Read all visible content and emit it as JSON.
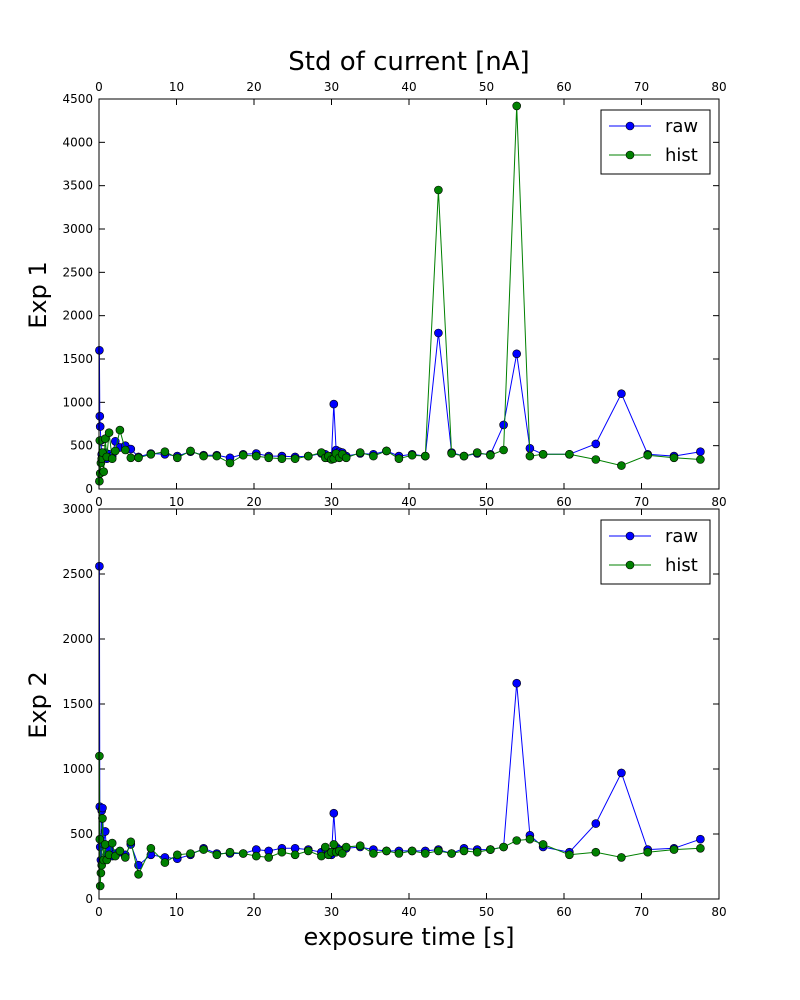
{
  "chart_data": [
    {
      "type": "line",
      "title": "Std of current [nA]",
      "xlabel": "",
      "ylabel": "Exp 1",
      "xlim": [
        0,
        80
      ],
      "ylim": [
        0,
        4500
      ],
      "xticks": [
        "0",
        "10",
        "20",
        "30",
        "40",
        "50",
        "60",
        "70",
        "80"
      ],
      "yticks": [
        "0",
        "500",
        "1000",
        "1500",
        "2000",
        "2500",
        "3000",
        "3500",
        "4000",
        "4500"
      ],
      "legend_position": "top-right",
      "series": [
        {
          "name": "raw",
          "color": "#0000ff",
          "x": [
            0.05,
            0.1,
            0.15,
            0.25,
            0.35,
            0.45,
            0.6,
            0.8,
            1.0,
            1.3,
            1.7,
            2.1,
            2.7,
            3.4,
            4.1,
            5.1,
            6.7,
            8.5,
            10.1,
            11.8,
            13.5,
            15.2,
            16.9,
            18.6,
            20.3,
            21.9,
            23.6,
            25.3,
            27.0,
            28.7,
            29.2,
            29.6,
            30.0,
            30.3,
            30.6,
            31.0,
            31.4,
            31.9,
            33.7,
            35.4,
            37.1,
            38.7,
            40.4,
            42.1,
            43.8,
            45.5,
            47.1,
            48.8,
            50.5,
            52.2,
            53.9,
            55.6,
            57.3,
            60.7,
            64.1,
            67.4,
            70.8,
            74.2,
            77.6
          ],
          "values": [
            1600,
            840,
            720,
            560,
            400,
            350,
            380,
            420,
            350,
            400,
            380,
            550,
            480,
            500,
            460,
            370,
            410,
            400,
            380,
            430,
            390,
            390,
            360,
            400,
            410,
            380,
            380,
            370,
            380,
            410,
            400,
            360,
            380,
            980,
            450,
            430,
            420,
            380,
            410,
            400,
            440,
            380,
            400,
            380,
            1800,
            420,
            380,
            410,
            400,
            740,
            1560,
            470,
            400,
            400,
            520,
            1100,
            400,
            380,
            430
          ]
        },
        {
          "name": "hist",
          "color": "#008000",
          "x": [
            0.05,
            0.1,
            0.15,
            0.25,
            0.35,
            0.45,
            0.6,
            0.8,
            1.0,
            1.3,
            1.7,
            2.1,
            2.7,
            3.4,
            4.1,
            5.1,
            6.7,
            8.5,
            10.1,
            11.8,
            13.5,
            15.2,
            16.9,
            18.6,
            20.3,
            21.9,
            23.6,
            25.3,
            27.0,
            28.7,
            29.2,
            29.6,
            30.0,
            30.3,
            30.6,
            31.0,
            31.4,
            31.9,
            33.7,
            35.4,
            37.1,
            38.7,
            40.4,
            42.1,
            43.8,
            45.5,
            47.1,
            48.8,
            50.5,
            52.2,
            53.9,
            55.6,
            57.3,
            60.7,
            64.1,
            67.4,
            70.8,
            74.2,
            77.6
          ],
          "values": [
            90,
            560,
            180,
            300,
            350,
            420,
            200,
            580,
            370,
            650,
            350,
            440,
            680,
            450,
            360,
            360,
            400,
            430,
            360,
            440,
            380,
            380,
            300,
            390,
            380,
            360,
            350,
            350,
            380,
            420,
            360,
            380,
            340,
            350,
            410,
            360,
            400,
            360,
            420,
            380,
            440,
            350,
            390,
            380,
            3450,
            410,
            380,
            420,
            390,
            450,
            4420,
            380,
            400,
            400,
            340,
            270,
            390,
            360,
            340
          ]
        }
      ]
    },
    {
      "type": "line",
      "title": "",
      "xlabel": "exposure time [s]",
      "ylabel": "Exp 2",
      "xlim": [
        0,
        80
      ],
      "ylim": [
        0,
        3000
      ],
      "xticks": [
        "0",
        "10",
        "20",
        "30",
        "40",
        "50",
        "60",
        "70",
        "80"
      ],
      "yticks": [
        "0",
        "500",
        "1000",
        "1500",
        "2000",
        "2500",
        "3000"
      ],
      "legend_position": "top-right",
      "series": [
        {
          "name": "raw",
          "color": "#0000ff",
          "x": [
            0.05,
            0.1,
            0.15,
            0.25,
            0.35,
            0.45,
            0.6,
            0.8,
            1.0,
            1.3,
            1.7,
            2.1,
            2.7,
            3.4,
            4.1,
            5.1,
            6.7,
            8.5,
            10.1,
            11.8,
            13.5,
            15.2,
            16.9,
            18.6,
            20.3,
            21.9,
            23.6,
            25.3,
            27.0,
            28.7,
            29.2,
            29.6,
            30.0,
            30.3,
            30.6,
            31.0,
            31.4,
            31.9,
            33.7,
            35.4,
            37.1,
            38.7,
            40.4,
            42.1,
            43.8,
            45.5,
            47.1,
            48.8,
            50.5,
            52.2,
            53.9,
            55.6,
            57.3,
            60.7,
            64.1,
            67.4,
            70.8,
            74.2,
            77.6
          ],
          "values": [
            2560,
            710,
            400,
            300,
            680,
            700,
            420,
            520,
            340,
            380,
            330,
            350,
            360,
            340,
            420,
            260,
            340,
            320,
            310,
            340,
            390,
            350,
            350,
            350,
            380,
            370,
            390,
            390,
            380,
            360,
            390,
            360,
            340,
            660,
            400,
            380,
            370,
            390,
            400,
            380,
            370,
            370,
            370,
            370,
            380,
            350,
            390,
            380,
            380,
            400,
            1660,
            490,
            400,
            360,
            580,
            970,
            380,
            390,
            460
          ]
        },
        {
          "name": "hist",
          "color": "#008000",
          "x": [
            0.05,
            0.1,
            0.15,
            0.25,
            0.35,
            0.45,
            0.6,
            0.8,
            1.0,
            1.3,
            1.7,
            2.1,
            2.7,
            3.4,
            4.1,
            5.1,
            6.7,
            8.5,
            10.1,
            11.8,
            13.5,
            15.2,
            16.9,
            18.6,
            20.3,
            21.9,
            23.6,
            25.3,
            27.0,
            28.7,
            29.2,
            29.6,
            30.0,
            30.3,
            30.6,
            31.0,
            31.4,
            31.9,
            33.7,
            35.4,
            37.1,
            38.7,
            40.4,
            42.1,
            43.8,
            45.5,
            47.1,
            48.8,
            50.5,
            52.2,
            53.9,
            55.6,
            57.3,
            60.7,
            64.1,
            67.4,
            70.8,
            74.2,
            77.6
          ],
          "values": [
            1100,
            460,
            100,
            200,
            260,
            620,
            300,
            420,
            300,
            340,
            430,
            330,
            370,
            320,
            440,
            190,
            390,
            280,
            340,
            350,
            380,
            340,
            360,
            350,
            330,
            320,
            360,
            340,
            370,
            330,
            400,
            340,
            360,
            420,
            360,
            370,
            350,
            400,
            410,
            350,
            370,
            350,
            370,
            350,
            370,
            350,
            370,
            360,
            380,
            400,
            450,
            460,
            420,
            340,
            360,
            320,
            360,
            380,
            390
          ]
        }
      ]
    }
  ]
}
